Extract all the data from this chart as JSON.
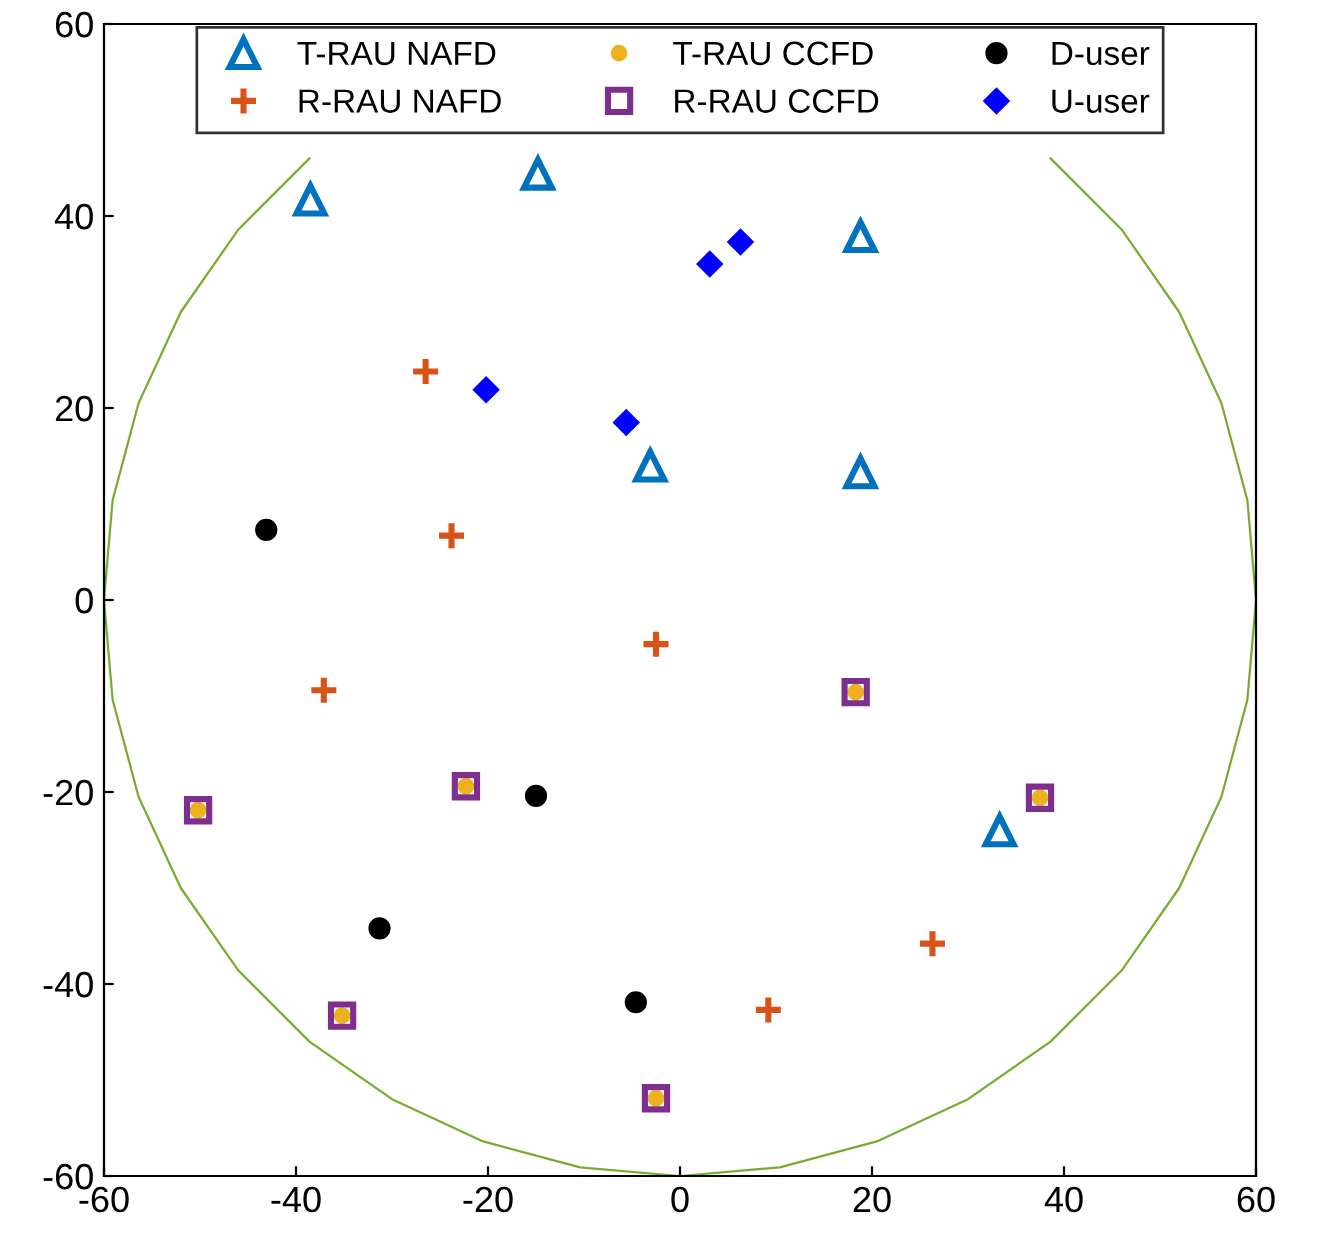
{
  "chart_data": {
    "type": "scatter",
    "xlim": [
      -60,
      60
    ],
    "ylim": [
      -60,
      60
    ],
    "xticks": [
      -60,
      -40,
      -20,
      0,
      20,
      40,
      60
    ],
    "yticks": [
      -60,
      -40,
      -20,
      0,
      20,
      40,
      60
    ],
    "grid": false,
    "legend": "top",
    "series": [
      {
        "name": "T-RAU NAFD",
        "color": "#0072bd",
        "marker": "triangle",
        "x": [
          -38.5,
          -14.8,
          18.8,
          -3.1,
          18.8,
          33.3
        ],
        "values": [
          41.7,
          44.4,
          37.9,
          14,
          13.3,
          -24
        ]
      },
      {
        "name": "R-RAU NAFD",
        "color": "#d95319",
        "marker": "cross",
        "x": [
          -26.5,
          -23.8,
          -37.1,
          -2.5,
          26.3,
          9.2
        ],
        "values": [
          23.8,
          6.7,
          -9.4,
          -4.6,
          -35.8,
          -42.7
        ]
      },
      {
        "name": "T-RAU CCFD",
        "color": "#edb120",
        "marker": "circle",
        "x": [
          -50.2,
          -22.3,
          -35.2,
          18.3,
          37.5,
          -2.5
        ],
        "values": [
          -21.9,
          -19.4,
          -43.3,
          -9.6,
          -20.6,
          -51.9
        ]
      },
      {
        "name": "R-RAU CCFD",
        "color": "#7e2f8e",
        "marker": "square",
        "x": [
          -50.2,
          -22.3,
          -35.2,
          18.3,
          37.5,
          -2.5
        ],
        "values": [
          -21.9,
          -19.4,
          -43.3,
          -9.6,
          -20.6,
          -51.9
        ]
      },
      {
        "name": "D-user",
        "color": "#000000",
        "marker": "circle",
        "x": [
          -43.1,
          -15,
          -31.3,
          -4.6
        ],
        "values": [
          7.3,
          -20.4,
          -34.2,
          -41.9
        ]
      },
      {
        "name": "U-user",
        "color": "#0000ff",
        "marker": "diamond",
        "x": [
          -20.2,
          3.1,
          6.3,
          -5.6
        ],
        "values": [
          21.9,
          35,
          37.3,
          18.5
        ]
      },
      {
        "type": "line",
        "color": "#77ac30",
        "marker": "none",
        "x": [
          60,
          59.1,
          56.4,
          52,
          46,
          38.6,
          30,
          20.5,
          10.4,
          0,
          -10.4,
          -20.5,
          -30,
          -38.6,
          -46,
          -52,
          -56.4,
          -59.1,
          -60,
          -59.1,
          -56.4,
          -52,
          -46,
          -38.6,
          -30,
          -20.5,
          -10.4,
          0,
          10.4,
          20.5,
          30,
          38.6,
          46,
          52,
          56.4,
          59.1,
          60
        ],
        "values": [
          0,
          10.4,
          20.5,
          30,
          38.6,
          46,
          null,
          null,
          null,
          null,
          null,
          null,
          null,
          46,
          38.6,
          30,
          20.5,
          10.4,
          0,
          -10.4,
          -20.5,
          -30,
          -38.6,
          -46,
          -52,
          -56.4,
          -59.1,
          -60,
          -59.1,
          -56.4,
          -52,
          -46,
          -38.6,
          -30,
          -20.5,
          -10.4,
          0
        ]
      }
    ]
  }
}
